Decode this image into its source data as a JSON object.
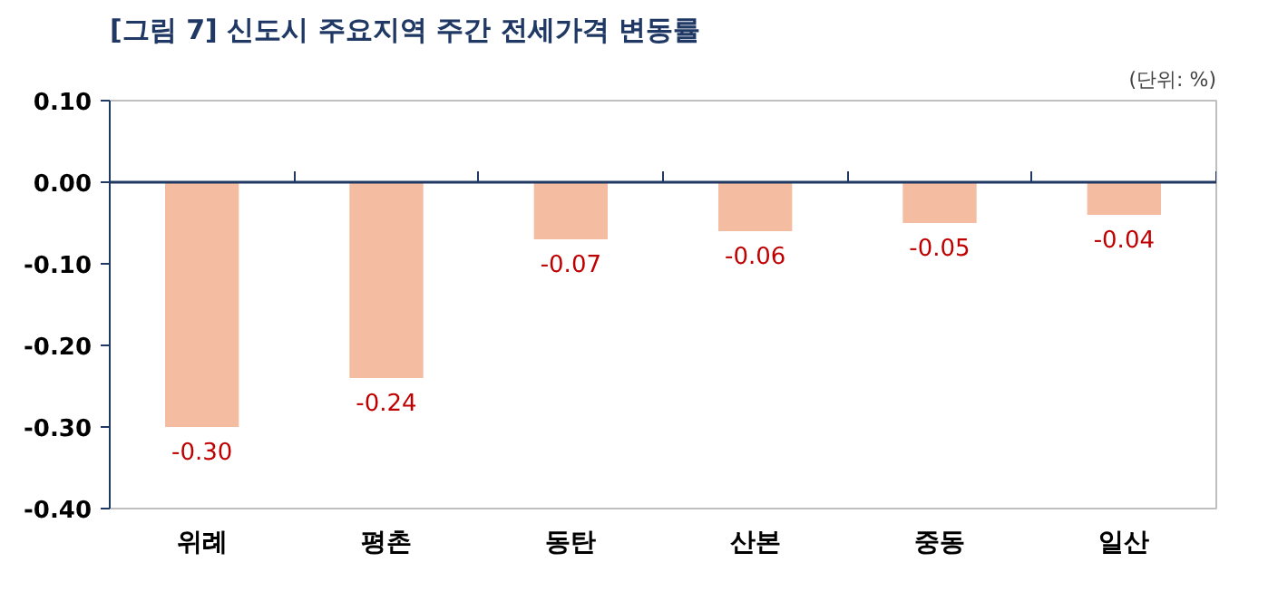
{
  "chart_data": {
    "type": "bar",
    "title": "[그림 7] 신도시 주요지역 주간 전세가격 변동률",
    "annotations": [
      "(단위: %)"
    ],
    "categories": [
      "위례",
      "평촌",
      "동탄",
      "산본",
      "중동",
      "일산"
    ],
    "values": [
      -0.3,
      -0.24,
      -0.07,
      -0.06,
      -0.05,
      -0.04
    ],
    "color": "#f4bca0",
    "ylim": [
      -0.4,
      0.1
    ],
    "yticks": [
      {
        "value": 0.1,
        "label": "0.10"
      },
      {
        "value": 0,
        "label": "0.00"
      },
      {
        "value": -0.1,
        "label": "-0.10"
      },
      {
        "value": -0.2,
        "label": "-0.20"
      },
      {
        "value": -0.3,
        "label": "-0.30"
      },
      {
        "value": -0.4,
        "label": "-0.40"
      }
    ],
    "grid": false,
    "value_labels": [
      "-0.30",
      "-0.24",
      "-0.07",
      "-0.06",
      "-0.05",
      "-0.04"
    ],
    "ref_lines": [
      {
        "axis": "y",
        "value": 0,
        "color": "#1f3864"
      }
    ]
  }
}
